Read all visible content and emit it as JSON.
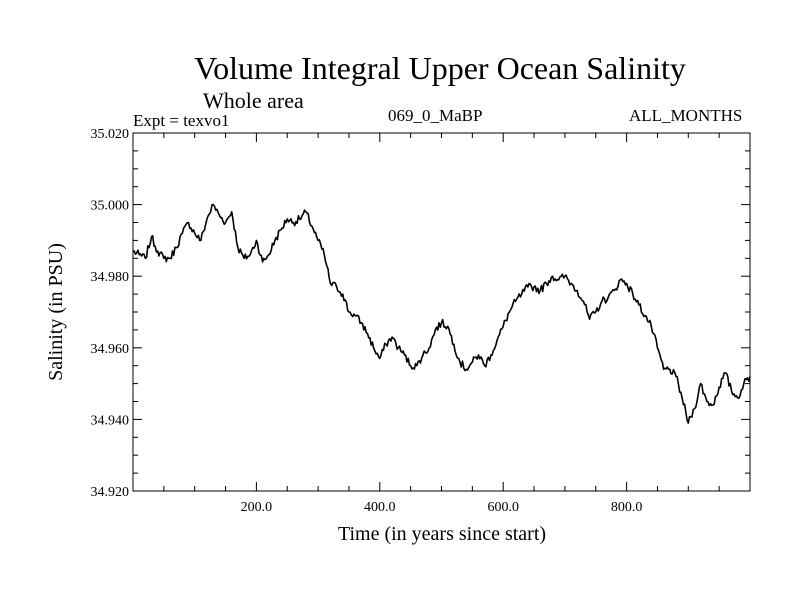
{
  "chart_data": {
    "type": "line",
    "title": "Volume Integral Upper Ocean Salinity",
    "subtitle": "Whole area",
    "annotations": {
      "experiment": "Expt = texvo1",
      "run": "069_0_MaBP",
      "months": "ALL_MONTHS"
    },
    "xlabel": "Time (in years since start)",
    "ylabel": "Salinity (in PSU)",
    "xlim": [
      0,
      1000
    ],
    "ylim": [
      34.92,
      35.02
    ],
    "x_ticks": [
      200,
      400,
      600,
      800
    ],
    "x_tick_labels": [
      "200.0",
      "400.0",
      "600.0",
      "800.0"
    ],
    "y_ticks": [
      34.92,
      34.94,
      34.96,
      34.98,
      35.0,
      35.02
    ],
    "y_tick_labels": [
      "34.920",
      "34.940",
      "34.960",
      "34.980",
      "35.000",
      "35.020"
    ],
    "grid": false,
    "series": [
      {
        "name": "Salinity",
        "x": [
          0,
          10,
          20,
          30,
          40,
          50,
          60,
          70,
          80,
          90,
          100,
          110,
          120,
          130,
          140,
          150,
          160,
          170,
          180,
          190,
          200,
          210,
          220,
          230,
          240,
          250,
          260,
          270,
          280,
          290,
          300,
          310,
          320,
          330,
          340,
          350,
          360,
          370,
          380,
          390,
          400,
          410,
          420,
          430,
          440,
          450,
          460,
          470,
          480,
          490,
          500,
          510,
          520,
          530,
          540,
          550,
          560,
          570,
          580,
          590,
          600,
          610,
          620,
          630,
          640,
          650,
          660,
          670,
          680,
          690,
          700,
          710,
          720,
          730,
          740,
          750,
          760,
          770,
          780,
          790,
          800,
          810,
          820,
          830,
          840,
          850,
          860,
          870,
          880,
          890,
          900,
          910,
          920,
          930,
          940,
          950,
          960,
          970,
          980,
          990,
          1000
        ],
        "y": [
          34.987,
          34.986,
          34.985,
          34.991,
          34.987,
          34.985,
          34.985,
          34.988,
          34.992,
          34.995,
          34.992,
          34.99,
          34.996,
          35.0,
          34.997,
          34.995,
          34.998,
          34.988,
          34.985,
          34.986,
          34.99,
          34.984,
          34.986,
          34.99,
          34.993,
          34.996,
          34.995,
          34.996,
          34.998,
          34.994,
          34.99,
          34.986,
          34.978,
          34.977,
          34.975,
          34.97,
          34.969,
          34.967,
          34.964,
          34.96,
          34.957,
          34.961,
          34.963,
          34.96,
          34.958,
          34.955,
          34.955,
          34.958,
          34.96,
          34.965,
          34.967,
          34.966,
          34.961,
          34.956,
          34.954,
          34.956,
          34.958,
          34.955,
          34.958,
          34.962,
          34.966,
          34.97,
          34.973,
          34.975,
          34.977,
          34.977,
          34.976,
          34.978,
          34.98,
          34.979,
          34.98,
          34.978,
          34.976,
          34.973,
          34.968,
          34.97,
          34.973,
          34.974,
          34.976,
          34.979,
          34.978,
          34.975,
          34.972,
          34.969,
          34.966,
          34.96,
          34.954,
          34.954,
          34.952,
          34.946,
          34.939,
          34.943,
          34.95,
          34.945,
          34.944,
          34.949,
          34.953,
          34.948,
          34.946,
          34.95,
          34.952
        ]
      }
    ]
  }
}
